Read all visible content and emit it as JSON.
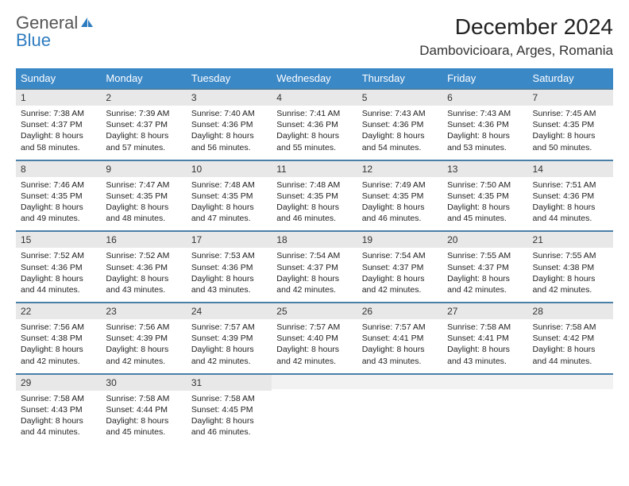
{
  "logo": {
    "word1": "General",
    "word2": "Blue"
  },
  "title": "December 2024",
  "location": "Dambovicioara, Arges, Romania",
  "colors": {
    "header_bg": "#3b88c7",
    "header_text": "#ffffff",
    "row_divider": "#4a7fa8",
    "daynum_bg": "#e8e8e8",
    "logo_gray": "#555555",
    "logo_blue": "#2e7cc0",
    "text": "#1a1a1a",
    "background": "#ffffff"
  },
  "weekdays": [
    "Sunday",
    "Monday",
    "Tuesday",
    "Wednesday",
    "Thursday",
    "Friday",
    "Saturday"
  ],
  "weeks": [
    [
      {
        "n": "1",
        "sr": "7:38 AM",
        "ss": "4:37 PM",
        "dl": "8 hours and 58 minutes."
      },
      {
        "n": "2",
        "sr": "7:39 AM",
        "ss": "4:37 PM",
        "dl": "8 hours and 57 minutes."
      },
      {
        "n": "3",
        "sr": "7:40 AM",
        "ss": "4:36 PM",
        "dl": "8 hours and 56 minutes."
      },
      {
        "n": "4",
        "sr": "7:41 AM",
        "ss": "4:36 PM",
        "dl": "8 hours and 55 minutes."
      },
      {
        "n": "5",
        "sr": "7:43 AM",
        "ss": "4:36 PM",
        "dl": "8 hours and 54 minutes."
      },
      {
        "n": "6",
        "sr": "7:43 AM",
        "ss": "4:36 PM",
        "dl": "8 hours and 53 minutes."
      },
      {
        "n": "7",
        "sr": "7:45 AM",
        "ss": "4:35 PM",
        "dl": "8 hours and 50 minutes."
      }
    ],
    [
      {
        "n": "8",
        "sr": "7:46 AM",
        "ss": "4:35 PM",
        "dl": "8 hours and 49 minutes."
      },
      {
        "n": "9",
        "sr": "7:47 AM",
        "ss": "4:35 PM",
        "dl": "8 hours and 48 minutes."
      },
      {
        "n": "10",
        "sr": "7:48 AM",
        "ss": "4:35 PM",
        "dl": "8 hours and 47 minutes."
      },
      {
        "n": "11",
        "sr": "7:48 AM",
        "ss": "4:35 PM",
        "dl": "8 hours and 46 minutes."
      },
      {
        "n": "12",
        "sr": "7:49 AM",
        "ss": "4:35 PM",
        "dl": "8 hours and 46 minutes."
      },
      {
        "n": "13",
        "sr": "7:50 AM",
        "ss": "4:35 PM",
        "dl": "8 hours and 45 minutes."
      },
      {
        "n": "14",
        "sr": "7:51 AM",
        "ss": "4:36 PM",
        "dl": "8 hours and 44 minutes."
      }
    ],
    [
      {
        "n": "15",
        "sr": "7:52 AM",
        "ss": "4:36 PM",
        "dl": "8 hours and 44 minutes."
      },
      {
        "n": "16",
        "sr": "7:52 AM",
        "ss": "4:36 PM",
        "dl": "8 hours and 43 minutes."
      },
      {
        "n": "17",
        "sr": "7:53 AM",
        "ss": "4:36 PM",
        "dl": "8 hours and 43 minutes."
      },
      {
        "n": "18",
        "sr": "7:54 AM",
        "ss": "4:37 PM",
        "dl": "8 hours and 42 minutes."
      },
      {
        "n": "19",
        "sr": "7:54 AM",
        "ss": "4:37 PM",
        "dl": "8 hours and 42 minutes."
      },
      {
        "n": "20",
        "sr": "7:55 AM",
        "ss": "4:37 PM",
        "dl": "8 hours and 42 minutes."
      },
      {
        "n": "21",
        "sr": "7:55 AM",
        "ss": "4:38 PM",
        "dl": "8 hours and 42 minutes."
      }
    ],
    [
      {
        "n": "22",
        "sr": "7:56 AM",
        "ss": "4:38 PM",
        "dl": "8 hours and 42 minutes."
      },
      {
        "n": "23",
        "sr": "7:56 AM",
        "ss": "4:39 PM",
        "dl": "8 hours and 42 minutes."
      },
      {
        "n": "24",
        "sr": "7:57 AM",
        "ss": "4:39 PM",
        "dl": "8 hours and 42 minutes."
      },
      {
        "n": "25",
        "sr": "7:57 AM",
        "ss": "4:40 PM",
        "dl": "8 hours and 42 minutes."
      },
      {
        "n": "26",
        "sr": "7:57 AM",
        "ss": "4:41 PM",
        "dl": "8 hours and 43 minutes."
      },
      {
        "n": "27",
        "sr": "7:58 AM",
        "ss": "4:41 PM",
        "dl": "8 hours and 43 minutes."
      },
      {
        "n": "28",
        "sr": "7:58 AM",
        "ss": "4:42 PM",
        "dl": "8 hours and 44 minutes."
      }
    ],
    [
      {
        "n": "29",
        "sr": "7:58 AM",
        "ss": "4:43 PM",
        "dl": "8 hours and 44 minutes."
      },
      {
        "n": "30",
        "sr": "7:58 AM",
        "ss": "4:44 PM",
        "dl": "8 hours and 45 minutes."
      },
      {
        "n": "31",
        "sr": "7:58 AM",
        "ss": "4:45 PM",
        "dl": "8 hours and 46 minutes."
      },
      null,
      null,
      null,
      null
    ]
  ],
  "labels": {
    "sunrise": "Sunrise:",
    "sunset": "Sunset:",
    "daylight": "Daylight:"
  }
}
